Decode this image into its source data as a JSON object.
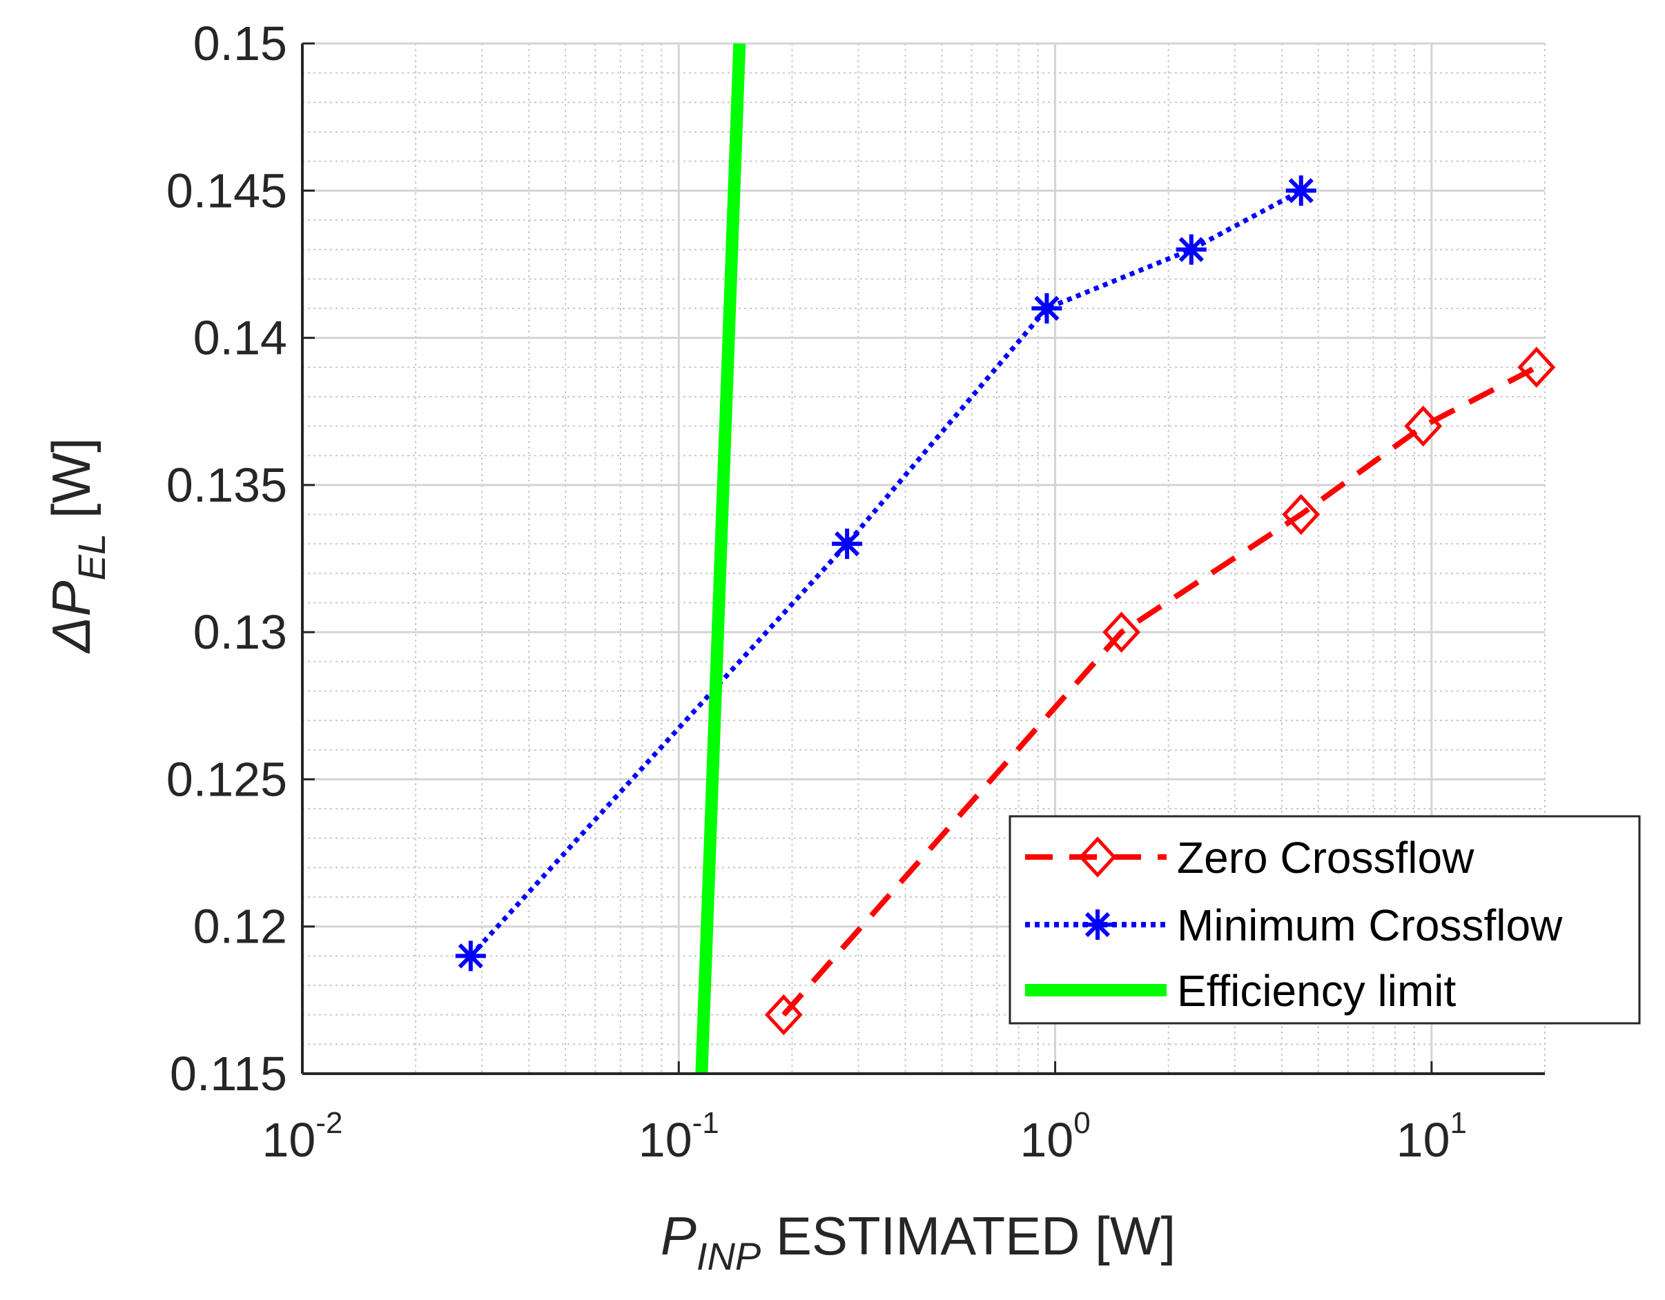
{
  "chart_data": {
    "type": "line",
    "x_scale": "log",
    "xlim": [
      0.01,
      20
    ],
    "ylim": [
      0.115,
      0.15
    ],
    "grid": true,
    "minor_grid": true,
    "legend_position": "bottom-right",
    "xlabel": {
      "main": "P",
      "sub": "INP",
      "rest": " ESTIMATED [W]"
    },
    "ylabel": {
      "delta": "Δ",
      "main": "P",
      "sub": "EL",
      "rest": " [W]"
    },
    "x_ticks": [
      {
        "value": 0.01,
        "base": "10",
        "exp": "-2"
      },
      {
        "value": 0.1,
        "base": "10",
        "exp": "-1"
      },
      {
        "value": 1,
        "base": "10",
        "exp": "0"
      },
      {
        "value": 10,
        "base": "10",
        "exp": "1"
      }
    ],
    "y_ticks": [
      {
        "value": 0.115,
        "label": "0.115"
      },
      {
        "value": 0.12,
        "label": "0.12"
      },
      {
        "value": 0.125,
        "label": "0.125"
      },
      {
        "value": 0.13,
        "label": "0.13"
      },
      {
        "value": 0.135,
        "label": "0.135"
      },
      {
        "value": 0.14,
        "label": "0.14"
      },
      {
        "value": 0.145,
        "label": "0.145"
      },
      {
        "value": 0.15,
        "label": "0.15"
      }
    ],
    "series": [
      {
        "name": "Zero Crossflow",
        "color": "#ff0000",
        "line_style": "dashed",
        "marker": "diamond",
        "x": [
          0.19,
          1.5,
          4.5,
          9.5,
          19
        ],
        "y": [
          0.117,
          0.13,
          0.134,
          0.137,
          0.139
        ]
      },
      {
        "name": "Minimum Crossflow",
        "color": "#0000ff",
        "line_style": "dotted",
        "marker": "asterisk",
        "x": [
          0.028,
          0.28,
          0.95,
          2.3,
          4.5
        ],
        "y": [
          0.119,
          0.133,
          0.141,
          0.143,
          0.145
        ]
      },
      {
        "name": "Efficiency limit",
        "color": "#00ff00",
        "line_style": "solid",
        "marker": "none",
        "x": [
          0.115,
          0.145
        ],
        "y": [
          0.115,
          0.15
        ]
      }
    ]
  }
}
